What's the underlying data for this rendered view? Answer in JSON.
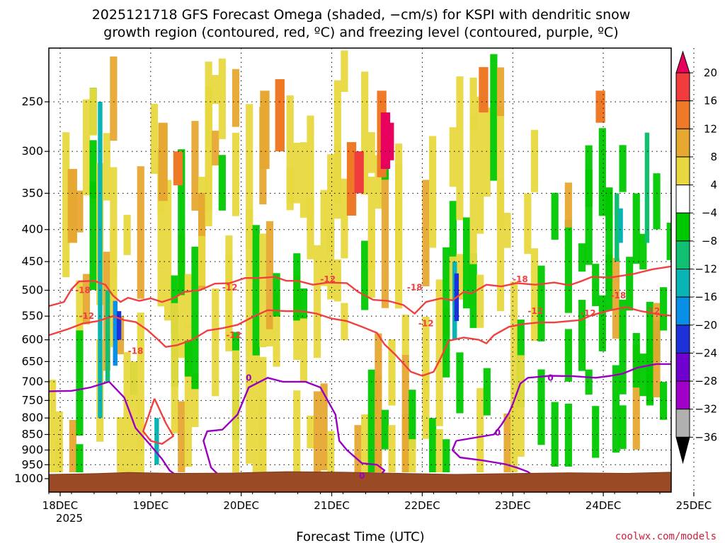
{
  "chart_data": {
    "type": "heatmap",
    "title_lines": [
      "2025121718 GFS Forecast Omega (shaded, −cm/s) for KSPI with dendritic snow",
      "growth region (contoured, red, ºC) and freezing level (contoured, purple, ºC)"
    ],
    "xlabel": "Forecast Time (UTC)",
    "x_ticks": [
      "18DEC",
      "19DEC",
      "20DEC",
      "21DEC",
      "22DEC",
      "23DEC",
      "24DEC",
      "25DEC"
    ],
    "x_tick_sub": "2025",
    "x_range_hours": [
      -3,
      162
    ],
    "y_ticks": [
      250,
      300,
      350,
      400,
      450,
      500,
      550,
      600,
      650,
      700,
      750,
      800,
      850,
      900,
      950,
      1000
    ],
    "y_range_hpa": [
      200,
      1020
    ],
    "colorbar": {
      "labels": [
        "20",
        "16",
        "12",
        "8",
        "4",
        "−4",
        "−8",
        "−12",
        "−16",
        "−20",
        "−24",
        "−28",
        "−32",
        "−36"
      ],
      "colors": [
        "#e8005e",
        "#f03c3c",
        "#ee7a28",
        "#e6a830",
        "#e8d840",
        "#ffffff",
        "#00c800",
        "#10c070",
        "#08b4b4",
        "#0890e8",
        "#1e30d8",
        "#7000d0",
        "#a000c8",
        "#b0b0b0",
        "#000000"
      ]
    },
    "contours": {
      "dgz_color": "#f04040",
      "freezing_color": "#9a00c0",
      "dgz_labels": [
        "-18",
        "-12",
        "-18",
        "-12",
        "-12",
        "-12",
        "-18",
        "-12",
        "-18",
        "-12",
        "-12",
        "-18",
        "-12"
      ],
      "freezing_labels": [
        "0",
        "0",
        "0",
        "0"
      ],
      "upper_dgz_hpa": [
        [
          -3,
          530
        ],
        [
          1,
          522
        ],
        [
          3,
          498
        ],
        [
          5,
          484
        ],
        [
          9,
          483
        ],
        [
          12,
          490
        ],
        [
          14,
          510
        ],
        [
          16,
          522
        ],
        [
          18,
          514
        ],
        [
          21,
          520
        ],
        [
          24,
          515
        ],
        [
          27,
          522
        ],
        [
          30,
          515
        ],
        [
          33,
          503
        ],
        [
          37,
          500
        ],
        [
          41,
          488
        ],
        [
          45,
          487
        ],
        [
          49,
          478
        ],
        [
          53,
          478
        ],
        [
          57,
          476
        ],
        [
          60,
          483
        ],
        [
          63,
          483
        ],
        [
          67,
          490
        ],
        [
          71,
          486
        ],
        [
          76,
          487
        ],
        [
          79,
          503
        ],
        [
          83,
          518
        ],
        [
          87,
          520
        ],
        [
          91,
          528
        ],
        [
          94,
          545
        ],
        [
          97,
          522
        ],
        [
          101,
          515
        ],
        [
          104,
          519
        ],
        [
          107,
          503
        ],
        [
          109,
          506
        ],
        [
          113,
          490
        ],
        [
          117,
          493
        ],
        [
          121,
          487
        ],
        [
          126,
          490
        ],
        [
          131,
          486
        ],
        [
          135,
          491
        ],
        [
          138,
          484
        ],
        [
          141,
          476
        ],
        [
          146,
          477
        ],
        [
          152,
          471
        ],
        [
          157,
          463
        ],
        [
          162,
          458
        ]
      ],
      "lower_dgz_hpa": [
        [
          -3,
          590
        ],
        [
          2,
          577
        ],
        [
          6,
          565
        ],
        [
          10,
          560
        ],
        [
          14,
          550
        ],
        [
          17,
          558
        ],
        [
          20,
          562
        ],
        [
          23,
          578
        ],
        [
          26,
          600
        ],
        [
          28,
          616
        ],
        [
          31,
          612
        ],
        [
          35,
          600
        ],
        [
          39,
          580
        ],
        [
          43,
          575
        ],
        [
          47,
          568
        ],
        [
          51,
          552
        ],
        [
          55,
          538
        ],
        [
          60,
          540
        ],
        [
          64,
          540
        ],
        [
          68,
          545
        ],
        [
          72,
          555
        ],
        [
          76,
          560
        ],
        [
          80,
          572
        ],
        [
          84,
          585
        ],
        [
          86,
          610
        ],
        [
          89,
          635
        ],
        [
          93,
          675
        ],
        [
          96,
          685
        ],
        [
          99,
          675
        ],
        [
          101,
          640
        ],
        [
          103,
          602
        ],
        [
          107,
          595
        ],
        [
          111,
          600
        ],
        [
          113,
          608
        ],
        [
          115,
          590
        ],
        [
          119,
          572
        ],
        [
          123,
          566
        ],
        [
          127,
          563
        ],
        [
          131,
          563
        ],
        [
          135,
          560
        ],
        [
          138,
          558
        ],
        [
          141,
          548
        ],
        [
          146,
          538
        ],
        [
          150,
          532
        ],
        [
          154,
          540
        ],
        [
          159,
          547
        ],
        [
          162,
          549
        ]
      ],
      "small_dgz_hpa": [
        [
          25,
          745
        ],
        [
          22,
          840
        ],
        [
          24,
          870
        ],
        [
          27,
          880
        ],
        [
          30,
          855
        ],
        [
          28,
          815
        ],
        [
          25,
          745
        ]
      ],
      "freezing_level_hpa": [
        [
          -3,
          725
        ],
        [
          3,
          724
        ],
        [
          8,
          715
        ],
        [
          13,
          700
        ],
        [
          17,
          742
        ],
        [
          20,
          830
        ],
        [
          24,
          885
        ],
        [
          27,
          930
        ],
        [
          29,
          970
        ],
        [
          31,
          990
        ],
        [
          33,
          1000
        ]
      ],
      "freezing_blob1_hpa": [
        [
          43,
          1000
        ],
        [
          40,
          960
        ],
        [
          38,
          870
        ],
        [
          39,
          840
        ],
        [
          43,
          835
        ],
        [
          47,
          790
        ],
        [
          50,
          715
        ],
        [
          55,
          690
        ],
        [
          59,
          700
        ],
        [
          65,
          700
        ],
        [
          69,
          715
        ],
        [
          73,
          790
        ],
        [
          74,
          870
        ],
        [
          76,
          900
        ],
        [
          80,
          945
        ],
        [
          84,
          950
        ],
        [
          86,
          970
        ],
        [
          84,
          1000
        ]
      ],
      "freezing_blob2_hpa": [
        [
          92,
          1000
        ],
        [
          95,
          990
        ],
        [
          101,
          990
        ],
        [
          103,
          1000
        ]
      ],
      "freezing_level_right_hpa": [
        [
          105,
          870
        ],
        [
          110,
          860
        ],
        [
          115,
          850
        ],
        [
          117,
          820
        ],
        [
          119,
          785
        ],
        [
          120,
          760
        ],
        [
          122,
          705
        ],
        [
          124,
          690
        ],
        [
          130,
          685
        ],
        [
          136,
          686
        ],
        [
          142,
          690
        ],
        [
          146,
          685
        ],
        [
          149,
          680
        ],
        [
          153,
          665
        ],
        [
          158,
          656
        ],
        [
          162,
          656
        ]
      ],
      "freezing_loop_right_hpa": [
        [
          105,
          870
        ],
        [
          104,
          900
        ],
        [
          106,
          925
        ],
        [
          112,
          935
        ],
        [
          118,
          948
        ],
        [
          121,
          960
        ],
        [
          124,
          975
        ],
        [
          126,
          995
        ]
      ]
    }
  },
  "credit": "coolwx.com/models"
}
